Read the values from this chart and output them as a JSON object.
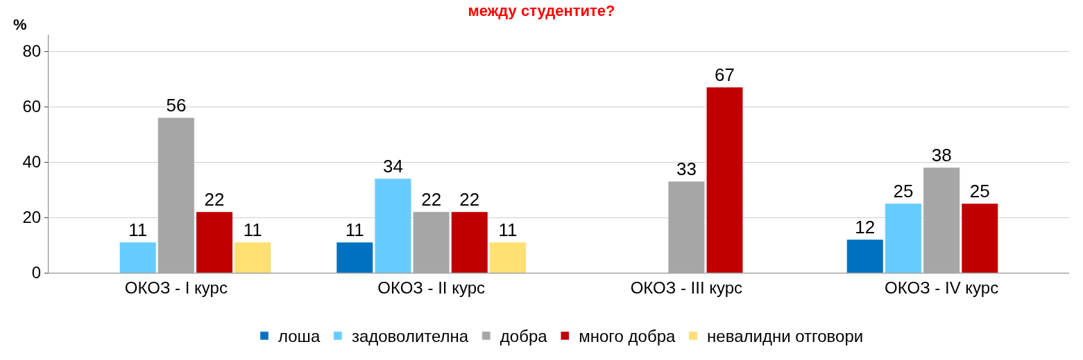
{
  "chart_data": {
    "type": "bar",
    "title": "между студентите?",
    "ylabel": "%",
    "categories": [
      "ОКОЗ - I курс",
      "ОКОЗ - II курс",
      "ОКОЗ - III курс",
      "ОКОЗ - IV курс"
    ],
    "series": [
      {
        "name": "лоша",
        "color": "#0070c0",
        "values": [
          null,
          11,
          null,
          12
        ]
      },
      {
        "name": "задоволителна",
        "color": "#66ccff",
        "values": [
          11,
          34,
          null,
          25
        ]
      },
      {
        "name": "добра",
        "color": "#a6a6a6",
        "values": [
          56,
          22,
          33,
          38
        ]
      },
      {
        "name": "много добра",
        "color": "#c00000",
        "values": [
          22,
          22,
          67,
          25
        ]
      },
      {
        "name": "невалидни отговори",
        "color": "#ffe070",
        "values": [
          11,
          11,
          null,
          null
        ]
      }
    ],
    "ylim": [
      0,
      86
    ],
    "yticks": [
      0,
      20,
      40,
      60,
      80
    ],
    "grid": "y",
    "legend": "bottom",
    "data_labels": true
  }
}
